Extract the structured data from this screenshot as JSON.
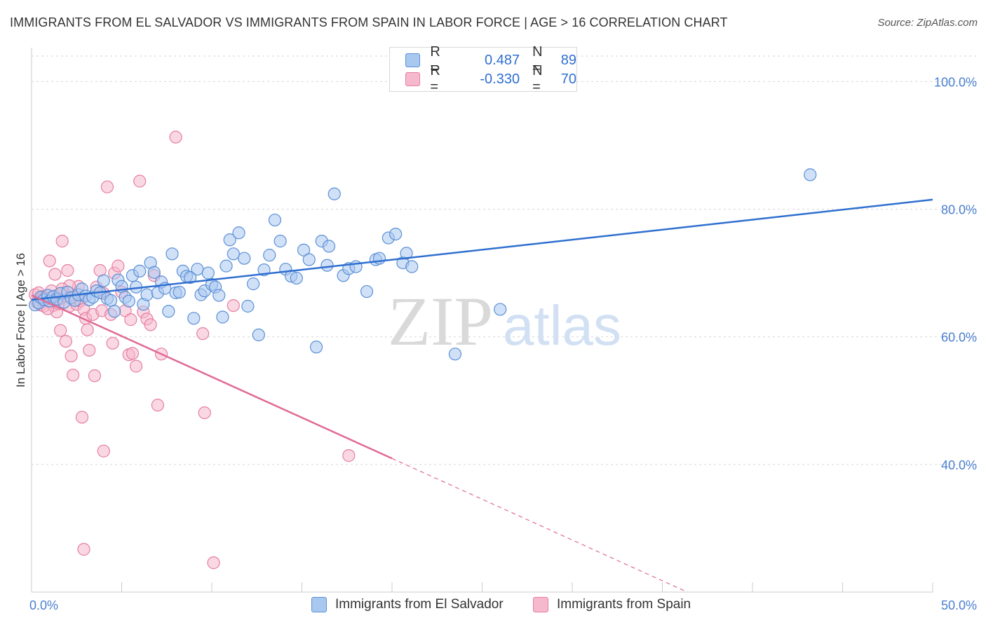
{
  "title": "IMMIGRANTS FROM EL SALVADOR VS IMMIGRANTS FROM SPAIN IN LABOR FORCE | AGE > 16 CORRELATION CHART",
  "source": "Source: ZipAtlas.com",
  "watermark": {
    "zip": "ZIP",
    "atlas": "atlas"
  },
  "legend": {
    "r_label": "R =",
    "n_label": "N =",
    "series": [
      {
        "r": "0.487",
        "n": "89"
      },
      {
        "r": "-0.330",
        "n": "70"
      }
    ]
  },
  "colors": {
    "blue_fill": "#a9c8f0",
    "blue_stroke": "#5b8fd6",
    "blue_line": "#2f6fd0",
    "pink_fill": "#f6b8cc",
    "pink_stroke": "#e57fa2",
    "pink_line": "#e06a96",
    "grid": "#d6d6d6",
    "tick_text": "#4a7fd0"
  },
  "chart_data": {
    "type": "scatter",
    "title": "IMMIGRANTS FROM EL SALVADOR VS IMMIGRANTS FROM SPAIN IN LABOR FORCE | AGE > 16 CORRELATION CHART",
    "xlabel": "",
    "ylabel": "In Labor Force | Age > 16",
    "xlim": [
      0,
      50
    ],
    "ylim": [
      20,
      104
    ],
    "x_tick_labels": [
      "0.0%",
      "50.0%"
    ],
    "y_ticks": [
      40,
      60,
      80,
      100
    ],
    "y_tick_labels": [
      "40.0%",
      "60.0%",
      "80.0%",
      "100.0%"
    ],
    "grid": true,
    "legend_position": "top-center",
    "series": [
      {
        "name": "Immigrants from El Salvador",
        "color": "#5b8fd6",
        "trend": {
          "x": [
            0,
            50
          ],
          "y": [
            65.8,
            81.5
          ],
          "dashed_from": null
        },
        "points": [
          [
            0.2,
            65.0
          ],
          [
            0.4,
            65.3
          ],
          [
            0.5,
            66.2
          ],
          [
            0.7,
            65.8
          ],
          [
            0.9,
            66.5
          ],
          [
            1.0,
            65.6
          ],
          [
            1.2,
            66.3
          ],
          [
            1.4,
            65.9
          ],
          [
            1.6,
            66.8
          ],
          [
            1.8,
            65.4
          ],
          [
            2.0,
            67.0
          ],
          [
            2.2,
            66.1
          ],
          [
            2.4,
            65.7
          ],
          [
            2.6,
            66.6
          ],
          [
            2.8,
            67.5
          ],
          [
            3.0,
            66.4
          ],
          [
            3.2,
            65.8
          ],
          [
            3.4,
            66.2
          ],
          [
            3.6,
            67.2
          ],
          [
            3.8,
            66.9
          ],
          [
            4.0,
            68.8
          ],
          [
            4.2,
            66.0
          ],
          [
            4.4,
            65.7
          ],
          [
            4.6,
            64.0
          ],
          [
            4.8,
            68.9
          ],
          [
            5.0,
            67.9
          ],
          [
            5.2,
            66.2
          ],
          [
            5.4,
            65.6
          ],
          [
            5.6,
            69.6
          ],
          [
            5.8,
            67.8
          ],
          [
            6.0,
            70.3
          ],
          [
            6.2,
            65.1
          ],
          [
            6.4,
            66.6
          ],
          [
            6.6,
            71.6
          ],
          [
            6.8,
            70.1
          ],
          [
            7.0,
            66.9
          ],
          [
            7.2,
            68.6
          ],
          [
            7.4,
            67.6
          ],
          [
            7.6,
            64.0
          ],
          [
            7.8,
            73.0
          ],
          [
            8.0,
            66.9
          ],
          [
            8.2,
            67.0
          ],
          [
            8.4,
            70.3
          ],
          [
            8.6,
            69.5
          ],
          [
            8.8,
            69.3
          ],
          [
            9.0,
            62.9
          ],
          [
            9.2,
            70.6
          ],
          [
            9.4,
            66.6
          ],
          [
            9.6,
            67.2
          ],
          [
            9.8,
            70.0
          ],
          [
            10.0,
            68.2
          ],
          [
            10.2,
            67.8
          ],
          [
            10.4,
            66.5
          ],
          [
            10.6,
            63.1
          ],
          [
            10.8,
            71.1
          ],
          [
            11.0,
            75.2
          ],
          [
            11.2,
            73.0
          ],
          [
            11.5,
            76.3
          ],
          [
            11.8,
            72.3
          ],
          [
            12.0,
            64.8
          ],
          [
            12.3,
            68.3
          ],
          [
            12.6,
            60.3
          ],
          [
            12.9,
            70.5
          ],
          [
            13.2,
            72.8
          ],
          [
            13.5,
            78.3
          ],
          [
            13.8,
            75.0
          ],
          [
            14.1,
            70.6
          ],
          [
            14.4,
            69.5
          ],
          [
            14.7,
            69.2
          ],
          [
            15.1,
            73.6
          ],
          [
            15.4,
            72.1
          ],
          [
            15.8,
            58.4
          ],
          [
            16.1,
            75.0
          ],
          [
            16.4,
            71.2
          ],
          [
            16.5,
            74.2
          ],
          [
            16.8,
            82.4
          ],
          [
            17.3,
            69.6
          ],
          [
            17.6,
            70.7
          ],
          [
            18.0,
            71.0
          ],
          [
            18.6,
            67.1
          ],
          [
            19.1,
            72.1
          ],
          [
            19.3,
            72.3
          ],
          [
            19.8,
            75.5
          ],
          [
            20.2,
            76.1
          ],
          [
            20.6,
            71.6
          ],
          [
            20.8,
            73.1
          ],
          [
            21.1,
            71.0
          ],
          [
            23.5,
            57.3
          ],
          [
            26.0,
            64.3
          ],
          [
            43.2,
            85.4
          ]
        ]
      },
      {
        "name": "Immigrants from Spain",
        "color": "#e57fa2",
        "trend": {
          "x": [
            0,
            50
          ],
          "y": [
            66.5,
            2.6
          ],
          "dashed_from": 20.0
        },
        "points": [
          [
            0.2,
            66.6
          ],
          [
            0.3,
            65.4
          ],
          [
            0.4,
            66.9
          ],
          [
            0.5,
            65.0
          ],
          [
            0.6,
            66.3
          ],
          [
            0.7,
            64.8
          ],
          [
            0.8,
            65.7
          ],
          [
            0.9,
            66.1
          ],
          [
            1.0,
            65.5
          ],
          [
            1.1,
            67.2
          ],
          [
            1.2,
            64.9
          ],
          [
            1.3,
            66.4
          ],
          [
            1.4,
            63.9
          ],
          [
            1.5,
            65.2
          ],
          [
            1.6,
            61.0
          ],
          [
            1.7,
            75.0
          ],
          [
            1.8,
            66.9
          ],
          [
            1.9,
            59.3
          ],
          [
            2.0,
            70.4
          ],
          [
            2.1,
            64.8
          ],
          [
            2.2,
            57.0
          ],
          [
            2.3,
            54.0
          ],
          [
            2.4,
            66.2
          ],
          [
            2.5,
            65.1
          ],
          [
            2.6,
            67.9
          ],
          [
            2.7,
            65.6
          ],
          [
            2.8,
            47.4
          ],
          [
            2.9,
            64.3
          ],
          [
            3.0,
            62.9
          ],
          [
            3.1,
            61.1
          ],
          [
            3.2,
            57.9
          ],
          [
            3.4,
            63.5
          ],
          [
            3.5,
            53.9
          ],
          [
            3.6,
            67.8
          ],
          [
            3.8,
            70.4
          ],
          [
            3.9,
            64.1
          ],
          [
            4.0,
            66.8
          ],
          [
            4.2,
            83.5
          ],
          [
            4.4,
            63.5
          ],
          [
            4.5,
            59.0
          ],
          [
            4.6,
            70.0
          ],
          [
            4.8,
            71.1
          ],
          [
            5.0,
            67.0
          ],
          [
            5.2,
            64.1
          ],
          [
            5.4,
            57.2
          ],
          [
            5.5,
            62.7
          ],
          [
            5.6,
            57.4
          ],
          [
            5.8,
            55.4
          ],
          [
            6.0,
            84.4
          ],
          [
            6.2,
            63.9
          ],
          [
            6.4,
            62.8
          ],
          [
            6.6,
            61.9
          ],
          [
            6.8,
            69.6
          ],
          [
            7.0,
            49.3
          ],
          [
            7.2,
            57.3
          ],
          [
            8.0,
            91.3
          ],
          [
            9.5,
            60.5
          ],
          [
            9.6,
            48.1
          ],
          [
            10.1,
            24.6
          ],
          [
            11.2,
            64.9
          ],
          [
            17.6,
            41.4
          ],
          [
            4.0,
            42.1
          ],
          [
            2.9,
            26.7
          ],
          [
            1.0,
            71.9
          ],
          [
            0.6,
            65.9
          ],
          [
            1.3,
            69.8
          ],
          [
            2.1,
            68.0
          ],
          [
            1.7,
            67.5
          ],
          [
            0.9,
            64.4
          ],
          [
            1.5,
            65.9
          ]
        ]
      }
    ]
  },
  "bottom_legend": {
    "items": [
      "Immigrants from El Salvador",
      "Immigrants from Spain"
    ]
  }
}
